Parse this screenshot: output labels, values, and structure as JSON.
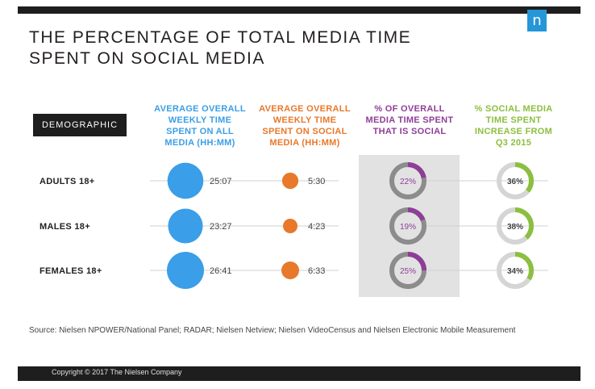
{
  "header": {
    "title_line1": "THE PERCENTAGE OF TOTAL MEDIA TIME",
    "title_line2": "SPENT ON SOCIAL MEDIA",
    "logo_glyph": "n"
  },
  "colors": {
    "blue": "#3a9ee8",
    "orange": "#e8782a",
    "purple": "#8e3e97",
    "green": "#8bbf3f",
    "ring_grey": "#8c8c8c",
    "ring_light": "#d5d5d5",
    "panel_grey": "#e2e2e2",
    "dark": "#1e1e1e"
  },
  "chart_data": {
    "type": "table",
    "title": "THE PERCENTAGE OF TOTAL MEDIA TIME SPENT ON SOCIAL MEDIA",
    "row_header": "DEMOGRAPHIC",
    "columns": [
      {
        "key": "total",
        "label_lines": [
          "AVERAGE OVERALL",
          "WEEKLY TIME",
          "SPENT ON ALL",
          "MEDIA (HH:MM)"
        ]
      },
      {
        "key": "social",
        "label_lines": [
          "AVERAGE OVERALL",
          "WEEKLY TIME",
          "SPENT ON SOCIAL",
          "MEDIA (HH:MM)"
        ]
      },
      {
        "key": "pct_social",
        "label_lines": [
          "% OF OVERALL",
          "MEDIA TIME SPENT",
          "THAT IS SOCIAL"
        ]
      },
      {
        "key": "increase",
        "label_lines": [
          "% SOCIAL MEDIA",
          "TIME SPENT",
          "INCREASE FROM",
          "Q3 2015"
        ]
      }
    ],
    "rows": [
      {
        "label": "ADULTS 18+",
        "total": "25:07",
        "social": "5:30",
        "pct_social": "22%",
        "pct_social_value": 22,
        "increase": "36%",
        "increase_value": 36
      },
      {
        "label": "MALES 18+",
        "total": "23:27",
        "social": "4:23",
        "pct_social": "19%",
        "pct_social_value": 19,
        "increase": "38%",
        "increase_value": 38
      },
      {
        "label": "FEMALES 18+",
        "total": "26:41",
        "social": "6:33",
        "pct_social": "25%",
        "pct_social_value": 25,
        "increase": "34%",
        "increase_value": 34
      }
    ]
  },
  "footer": {
    "source": "Source: Nielsen NPOWER/National Panel; RADAR; Nielsen Netview; Nielsen VideoCensus and Nielsen Electronic Mobile Measurement",
    "copyright": "Copyright © 2017 The Nielsen Company"
  }
}
